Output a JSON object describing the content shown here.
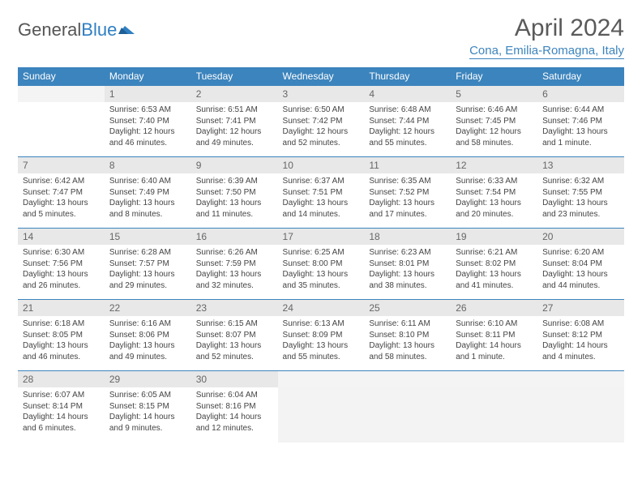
{
  "logo": {
    "text1": "General",
    "text2": "Blue"
  },
  "title": "April 2024",
  "location": "Cona, Emilia-Romagna, Italy",
  "colors": {
    "header_bg": "#3c84bd",
    "header_text": "#ffffff",
    "daynum_bg": "#e8e8e8",
    "border": "#3c84bd",
    "accent": "#3c84bd"
  },
  "weekdays": [
    "Sunday",
    "Monday",
    "Tuesday",
    "Wednesday",
    "Thursday",
    "Friday",
    "Saturday"
  ],
  "first_weekday_index": 1,
  "days": [
    {
      "n": 1,
      "sr": "6:53 AM",
      "ss": "7:40 PM",
      "dl": "12 hours and 46 minutes."
    },
    {
      "n": 2,
      "sr": "6:51 AM",
      "ss": "7:41 PM",
      "dl": "12 hours and 49 minutes."
    },
    {
      "n": 3,
      "sr": "6:50 AM",
      "ss": "7:42 PM",
      "dl": "12 hours and 52 minutes."
    },
    {
      "n": 4,
      "sr": "6:48 AM",
      "ss": "7:44 PM",
      "dl": "12 hours and 55 minutes."
    },
    {
      "n": 5,
      "sr": "6:46 AM",
      "ss": "7:45 PM",
      "dl": "12 hours and 58 minutes."
    },
    {
      "n": 6,
      "sr": "6:44 AM",
      "ss": "7:46 PM",
      "dl": "13 hours and 1 minute."
    },
    {
      "n": 7,
      "sr": "6:42 AM",
      "ss": "7:47 PM",
      "dl": "13 hours and 5 minutes."
    },
    {
      "n": 8,
      "sr": "6:40 AM",
      "ss": "7:49 PM",
      "dl": "13 hours and 8 minutes."
    },
    {
      "n": 9,
      "sr": "6:39 AM",
      "ss": "7:50 PM",
      "dl": "13 hours and 11 minutes."
    },
    {
      "n": 10,
      "sr": "6:37 AM",
      "ss": "7:51 PM",
      "dl": "13 hours and 14 minutes."
    },
    {
      "n": 11,
      "sr": "6:35 AM",
      "ss": "7:52 PM",
      "dl": "13 hours and 17 minutes."
    },
    {
      "n": 12,
      "sr": "6:33 AM",
      "ss": "7:54 PM",
      "dl": "13 hours and 20 minutes."
    },
    {
      "n": 13,
      "sr": "6:32 AM",
      "ss": "7:55 PM",
      "dl": "13 hours and 23 minutes."
    },
    {
      "n": 14,
      "sr": "6:30 AM",
      "ss": "7:56 PM",
      "dl": "13 hours and 26 minutes."
    },
    {
      "n": 15,
      "sr": "6:28 AM",
      "ss": "7:57 PM",
      "dl": "13 hours and 29 minutes."
    },
    {
      "n": 16,
      "sr": "6:26 AM",
      "ss": "7:59 PM",
      "dl": "13 hours and 32 minutes."
    },
    {
      "n": 17,
      "sr": "6:25 AM",
      "ss": "8:00 PM",
      "dl": "13 hours and 35 minutes."
    },
    {
      "n": 18,
      "sr": "6:23 AM",
      "ss": "8:01 PM",
      "dl": "13 hours and 38 minutes."
    },
    {
      "n": 19,
      "sr": "6:21 AM",
      "ss": "8:02 PM",
      "dl": "13 hours and 41 minutes."
    },
    {
      "n": 20,
      "sr": "6:20 AM",
      "ss": "8:04 PM",
      "dl": "13 hours and 44 minutes."
    },
    {
      "n": 21,
      "sr": "6:18 AM",
      "ss": "8:05 PM",
      "dl": "13 hours and 46 minutes."
    },
    {
      "n": 22,
      "sr": "6:16 AM",
      "ss": "8:06 PM",
      "dl": "13 hours and 49 minutes."
    },
    {
      "n": 23,
      "sr": "6:15 AM",
      "ss": "8:07 PM",
      "dl": "13 hours and 52 minutes."
    },
    {
      "n": 24,
      "sr": "6:13 AM",
      "ss": "8:09 PM",
      "dl": "13 hours and 55 minutes."
    },
    {
      "n": 25,
      "sr": "6:11 AM",
      "ss": "8:10 PM",
      "dl": "13 hours and 58 minutes."
    },
    {
      "n": 26,
      "sr": "6:10 AM",
      "ss": "8:11 PM",
      "dl": "14 hours and 1 minute."
    },
    {
      "n": 27,
      "sr": "6:08 AM",
      "ss": "8:12 PM",
      "dl": "14 hours and 4 minutes."
    },
    {
      "n": 28,
      "sr": "6:07 AM",
      "ss": "8:14 PM",
      "dl": "14 hours and 6 minutes."
    },
    {
      "n": 29,
      "sr": "6:05 AM",
      "ss": "8:15 PM",
      "dl": "14 hours and 9 minutes."
    },
    {
      "n": 30,
      "sr": "6:04 AM",
      "ss": "8:16 PM",
      "dl": "14 hours and 12 minutes."
    }
  ],
  "labels": {
    "sunrise": "Sunrise:",
    "sunset": "Sunset:",
    "daylight": "Daylight:"
  }
}
